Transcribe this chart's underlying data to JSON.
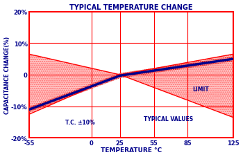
{
  "title": "TYPICAL TEMPERATURE CHANGE",
  "xlabel": "TEMPERATURE °C",
  "ylabel": "CAPACITANCE CHANGE(%)",
  "xlim": [
    -55,
    125
  ],
  "ylim": [
    -20,
    20
  ],
  "xticks": [
    -55,
    0,
    25,
    55,
    85,
    125
  ],
  "yticks": [
    -20,
    -10,
    0,
    10,
    20
  ],
  "ytick_labels": [
    "-20%",
    "-10%",
    "0",
    "10%",
    "20%"
  ],
  "bg_color": "#ffffff",
  "plot_bg_color": "#ffffff",
  "grid_color": "#ff0000",
  "axis_color": "#ff0000",
  "title_color": "#00008B",
  "label_color": "#00008B",
  "tick_color": "#00008B",
  "limit_color": "#ff0000",
  "fill_color": "#ff9999",
  "typical_color": "#00008B",
  "annot_tc": "T.C. ±10%",
  "annot_typical": "TYPICAL VALUES",
  "annot_limit": "LIMIT",
  "tc_x": -10,
  "tc_y": -15,
  "typical_x": 68,
  "typical_y": -14,
  "limit_x": 89,
  "limit_y": -4.5,
  "ref_temp": 25,
  "lim_at_minus55_upper": 6.5,
  "lim_at_minus55_lower": -12.5,
  "lim_at_125_upper": 6.5,
  "lim_at_125_lower": -13.5,
  "typ_at_minus55": -11.0,
  "typ_at_25": -0.3,
  "typ_at_125": 5.0,
  "typ_band": 0.8
}
